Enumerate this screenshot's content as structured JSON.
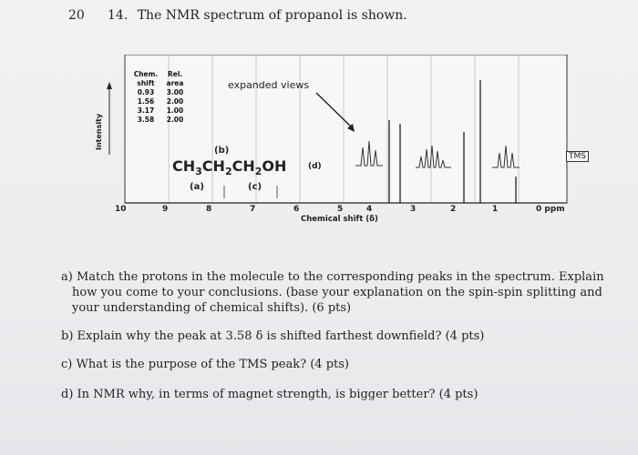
{
  "page_number": "20",
  "question": {
    "number": "14.",
    "title": "The NMR spectrum of propanol is shown."
  },
  "spectrum": {
    "table": {
      "headers": [
        "Chem. shift",
        "Rel. area"
      ],
      "rows": [
        [
          "0.93",
          "3.00"
        ],
        [
          "1.56",
          "2.00"
        ],
        [
          "3.17",
          "1.00"
        ],
        [
          "3.58",
          "2.00"
        ]
      ]
    },
    "y_axis_label": "Intensity",
    "expanded_views_label": "expanded views",
    "formula": {
      "p1": "CH",
      "s1": "3",
      "p2": "CH",
      "s2": "2",
      "p3": "CH",
      "s3": "2",
      "p4": "OH"
    },
    "labels": {
      "a": "(a)",
      "b": "(b)",
      "c": "(c)",
      "d": "(d)"
    },
    "tms_label": "TMS",
    "x_ticks": [
      "10",
      "9",
      "8",
      "7",
      "6",
      "5",
      "4",
      "3",
      "2",
      "1",
      "0 ppm"
    ],
    "x_axis_label": "Chemical shift (δ)"
  },
  "questions": [
    "a) Match the protons in the molecule to the corresponding peaks in the spectrum. Explain how you come to your conclusions. (base your explanation on the spin-spin splitting and your understanding of chemical shifts). (6 pts)",
    "b) Explain why the peak at 3.58 δ is shifted farthest downfield? (4 pts)",
    "c) What is the purpose of the TMS peak? (4 pts)",
    "d) In NMR why, in terms of magnet strength, is bigger better? (4 pts)"
  ]
}
